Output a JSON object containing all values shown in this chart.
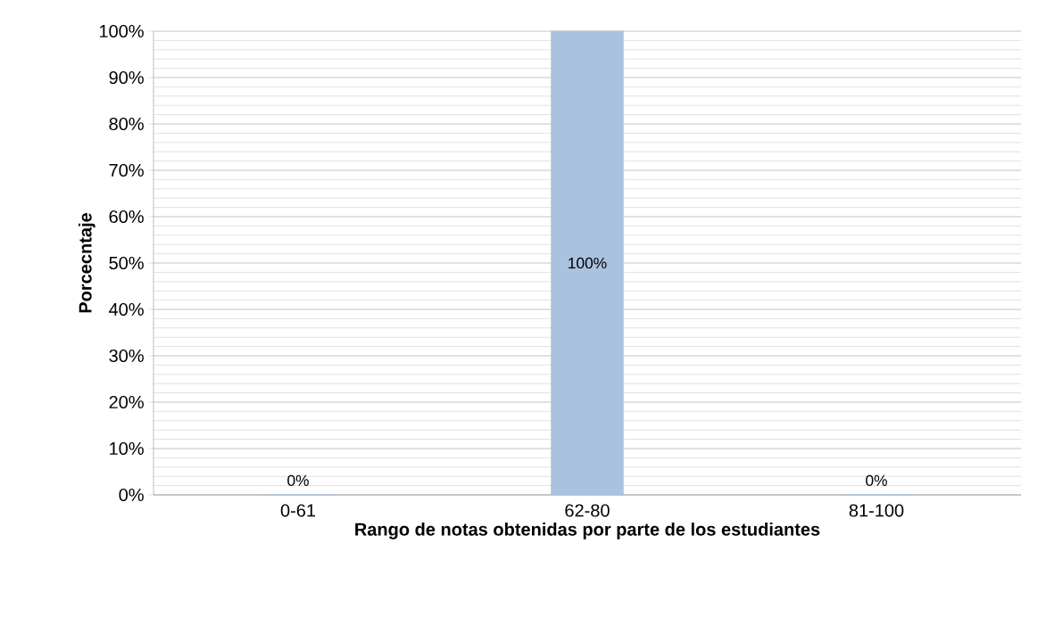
{
  "chart_data": {
    "type": "bar",
    "xlabel": "Rango de notas obtenidas por parte de los estudiantes",
    "ylabel": "Porcecntaje",
    "categories": [
      "0-61",
      "62-80",
      "81-100"
    ],
    "values": [
      0,
      100,
      0
    ],
    "value_labels": [
      "0%",
      "100%",
      "0%"
    ],
    "color": "#a9c2e0",
    "ylim": [
      0,
      100
    ],
    "yticks": [
      {
        "value": 0,
        "label": "0%"
      },
      {
        "value": 10,
        "label": "10%"
      },
      {
        "value": 20,
        "label": "20%"
      },
      {
        "value": 30,
        "label": "30%"
      },
      {
        "value": 40,
        "label": "40%"
      },
      {
        "value": 50,
        "label": "50%"
      },
      {
        "value": 60,
        "label": "60%"
      },
      {
        "value": 70,
        "label": "70%"
      },
      {
        "value": 80,
        "label": "80%"
      },
      {
        "value": 90,
        "label": "90%"
      },
      {
        "value": 100,
        "label": "100%"
      }
    ],
    "grid": "y"
  }
}
